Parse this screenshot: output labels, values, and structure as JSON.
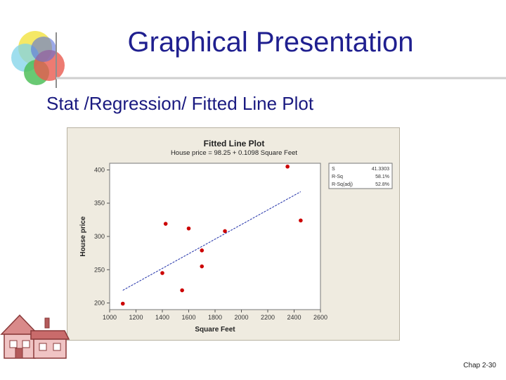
{
  "slide": {
    "title": "Graphical Presentation",
    "subtitle": "Stat /Regression/ Fitted Line Plot",
    "footer": "Chap 2-30"
  },
  "colors": {
    "title": "#1f1f8f",
    "points": "#cc0000",
    "fit_line": "#1f2fa8",
    "panel": "#efebe0"
  },
  "chart_data": {
    "type": "scatter",
    "title": "Fitted Line Plot",
    "subtitle": "House price = 98.25 + 0.1098 Square Feet",
    "xlabel": "Square Feet",
    "ylabel": "House price",
    "xlim": [
      1000,
      2600
    ],
    "ylim": [
      190,
      410
    ],
    "x_ticks": [
      1000,
      1200,
      1400,
      1600,
      1800,
      2000,
      2200,
      2400,
      2600
    ],
    "y_ticks": [
      200,
      250,
      300,
      350,
      400
    ],
    "grid": false,
    "points": [
      {
        "x": 1100,
        "y": 199
      },
      {
        "x": 1400,
        "y": 245
      },
      {
        "x": 1425,
        "y": 319
      },
      {
        "x": 1550,
        "y": 219
      },
      {
        "x": 1600,
        "y": 312
      },
      {
        "x": 1700,
        "y": 279
      },
      {
        "x": 1700,
        "y": 255
      },
      {
        "x": 1875,
        "y": 308
      },
      {
        "x": 2350,
        "y": 405
      },
      {
        "x": 2450,
        "y": 324
      }
    ],
    "fit_line": {
      "intercept": 98.25,
      "slope": 0.1098,
      "x_range": [
        1100,
        2450
      ]
    },
    "stats": [
      {
        "label": "S",
        "value": "41.3303"
      },
      {
        "label": "R-Sq",
        "value": "58.1%"
      },
      {
        "label": "R-Sq(adj)",
        "value": "52.8%"
      }
    ]
  }
}
